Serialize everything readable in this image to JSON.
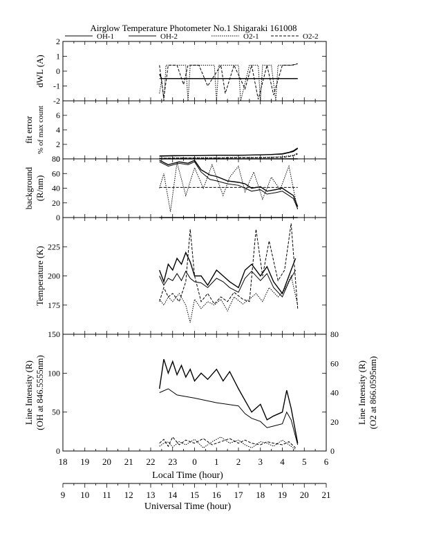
{
  "title": "Airglow Temperature Photometer No.1  Shigaraki  161008",
  "legend": [
    {
      "name": "OH-1",
      "dash": "solid"
    },
    {
      "name": "OH-2",
      "dash": "solid"
    },
    {
      "name": "O2-1",
      "dash": "dotted"
    },
    {
      "name": "O2-2",
      "dash": "dashed"
    }
  ],
  "x_axes": {
    "local": {
      "label": "Local Time (hour)",
      "ticks": [
        "18",
        "19",
        "20",
        "21",
        "22",
        "23",
        "0",
        "1",
        "2",
        "3",
        "4",
        "5",
        "6"
      ]
    },
    "universal": {
      "label": "Universal Time (hour)",
      "ticks": [
        "9",
        "10",
        "11",
        "12",
        "13",
        "14",
        "15",
        "16",
        "17",
        "18",
        "19",
        "20",
        "21"
      ]
    }
  },
  "chart_data": [
    {
      "type": "line",
      "ylabel": "dWL (A)",
      "ylim": [
        -2,
        2
      ],
      "yticks": [
        "2",
        "1",
        "0",
        "-1",
        "-2"
      ],
      "x_units": "universal time (hour)",
      "series": [
        {
          "name": "OH-1",
          "x": [
            13.4,
            13.5,
            19.7
          ],
          "y": [
            -0.2,
            -0.5,
            -0.5
          ]
        },
        {
          "name": "OH-2",
          "x": [
            13.4,
            19.7
          ],
          "y": [
            -0.5,
            -0.5
          ]
        },
        {
          "name": "O2-1",
          "x": [
            13.4,
            13.5,
            13.6,
            13.7,
            13.8,
            14.0,
            14.6,
            14.7,
            14.8,
            15.0,
            15.5,
            15.9,
            16.0,
            16.1,
            16.5,
            17.0,
            17.1,
            17.5,
            17.9,
            18.0,
            18.1,
            18.5,
            18.7,
            18.8,
            19.0,
            19.5,
            19.7
          ],
          "y": [
            -1.5,
            -0.6,
            -2.0,
            0.4,
            0.4,
            0.4,
            0.4,
            -2.0,
            0.4,
            0.4,
            0.4,
            0.4,
            -2.0,
            0.4,
            0.4,
            0.4,
            -2.0,
            0.4,
            0.4,
            -2.0,
            0.4,
            0.4,
            -2.0,
            0.4,
            0.4,
            0.4,
            0.5
          ]
        },
        {
          "name": "O2-2",
          "x": [
            13.4,
            13.6,
            13.8,
            14.2,
            14.5,
            14.7,
            15.2,
            15.6,
            16.2,
            16.4,
            16.8,
            17.3,
            17.6,
            17.9,
            18.3,
            18.6,
            19.0,
            19.4,
            19.7
          ],
          "y": [
            0.4,
            -1.8,
            0.4,
            0.4,
            -0.9,
            0.4,
            0.4,
            -1.0,
            0.4,
            -1.5,
            0.4,
            -1.2,
            0.4,
            -1.9,
            0.4,
            -1.6,
            0.4,
            0.4,
            0.5
          ]
        }
      ]
    },
    {
      "type": "line",
      "ylabel": "fit error",
      "ylabel2": "% of max count",
      "ylim": [
        0,
        8
      ],
      "yticks": [
        "6",
        "4",
        "2",
        "0"
      ],
      "x_units": "universal time (hour)",
      "series": [
        {
          "name": "OH-1",
          "x": [
            13.4,
            14.0,
            15.0,
            16.0,
            17.0,
            18.0,
            18.5,
            19.0,
            19.3,
            19.5,
            19.7
          ],
          "y": [
            0.4,
            0.45,
            0.45,
            0.5,
            0.5,
            0.55,
            0.6,
            0.7,
            0.9,
            1.1,
            1.5
          ]
        },
        {
          "name": "OH-2",
          "x": [
            13.4,
            14.0,
            15.0,
            16.0,
            17.0,
            18.0,
            18.5,
            19.0,
            19.3,
            19.5,
            19.7
          ],
          "y": [
            0.35,
            0.4,
            0.45,
            0.5,
            0.5,
            0.55,
            0.6,
            0.65,
            0.85,
            1.0,
            1.4
          ]
        },
        {
          "name": "O2-1",
          "x": [
            13.4,
            14.0,
            15.0,
            16.0,
            17.0,
            18.0,
            19.0,
            19.5,
            19.7
          ],
          "y": [
            0.1,
            0.1,
            0.15,
            0.15,
            0.2,
            0.2,
            0.3,
            0.5,
            0.8
          ]
        },
        {
          "name": "O2-2",
          "x": [
            13.4,
            14.0,
            15.0,
            16.0,
            17.0,
            18.0,
            19.0,
            19.5,
            19.7
          ],
          "y": [
            0.05,
            0.1,
            0.1,
            0.1,
            0.15,
            0.15,
            0.2,
            0.4,
            0.7
          ]
        }
      ]
    },
    {
      "type": "line",
      "ylabel": "background",
      "ylabel2": "(R/nm)",
      "ylim": [
        0,
        80
      ],
      "yticks": [
        "80",
        "60",
        "40",
        "20",
        "0"
      ],
      "x_units": "universal time (hour)",
      "series": [
        {
          "name": "OH-1",
          "x": [
            13.4,
            13.8,
            14.3,
            14.7,
            15.0,
            15.3,
            15.7,
            16.0,
            16.5,
            17.0,
            17.3,
            17.6,
            18.0,
            18.3,
            18.7,
            19.0,
            19.3,
            19.5,
            19.7
          ],
          "y": [
            78,
            72,
            76,
            74,
            78,
            65,
            58,
            56,
            50,
            48,
            46,
            40,
            42,
            36,
            38,
            40,
            34,
            30,
            15
          ]
        },
        {
          "name": "OH-2",
          "x": [
            13.4,
            13.8,
            14.3,
            14.7,
            15.0,
            15.3,
            15.7,
            16.0,
            16.5,
            17.0,
            17.3,
            17.6,
            18.0,
            18.3,
            18.7,
            19.0,
            19.3,
            19.5,
            19.7
          ],
          "y": [
            76,
            70,
            74,
            72,
            76,
            62,
            52,
            50,
            46,
            44,
            40,
            36,
            38,
            32,
            34,
            36,
            30,
            26,
            12
          ]
        },
        {
          "name": "O2-1",
          "x": [
            13.4,
            13.6,
            13.9,
            14.2,
            14.6,
            15.0,
            15.4,
            15.8,
            16.3,
            16.6,
            17.0,
            17.3,
            17.7,
            18.1,
            18.5,
            18.9,
            19.3,
            19.7
          ],
          "y": [
            40,
            60,
            8,
            75,
            30,
            68,
            40,
            72,
            30,
            55,
            70,
            35,
            62,
            25,
            55,
            38,
            70,
            10
          ]
        },
        {
          "name": "O2-2",
          "x": [
            13.4,
            19.7
          ],
          "y": [
            41,
            41
          ]
        }
      ]
    },
    {
      "type": "line",
      "ylabel": "Temperature (K)",
      "ylim": [
        150,
        250
      ],
      "yticks": [
        "225",
        "200",
        "175"
      ],
      "x_units": "universal time (hour)",
      "series": [
        {
          "name": "OH-1",
          "x": [
            13.4,
            13.6,
            13.8,
            14.0,
            14.2,
            14.4,
            14.6,
            14.8,
            15.0,
            15.3,
            15.6,
            16.0,
            16.3,
            16.6,
            17.0,
            17.3,
            17.6,
            18.0,
            18.3,
            18.6,
            19.0,
            19.3,
            19.6
          ],
          "y": [
            205,
            195,
            210,
            205,
            215,
            210,
            220,
            212,
            200,
            200,
            192,
            205,
            200,
            195,
            190,
            205,
            210,
            200,
            208,
            195,
            185,
            200,
            215
          ]
        },
        {
          "name": "OH-2",
          "x": [
            13.4,
            13.6,
            13.8,
            14.0,
            14.2,
            14.4,
            14.6,
            14.8,
            15.0,
            15.3,
            15.6,
            16.0,
            16.3,
            16.6,
            17.0,
            17.3,
            17.6,
            18.0,
            18.3,
            18.6,
            19.0,
            19.3,
            19.6
          ],
          "y": [
            200,
            192,
            198,
            196,
            202,
            196,
            204,
            198,
            195,
            194,
            190,
            198,
            195,
            190,
            186,
            198,
            204,
            196,
            202,
            190,
            182,
            195,
            205
          ]
        },
        {
          "name": "O2-1",
          "x": [
            13.4,
            13.6,
            13.8,
            14.0,
            14.3,
            14.6,
            14.8,
            15.0,
            15.3,
            15.6,
            15.9,
            16.2,
            16.5,
            16.8,
            17.2,
            17.5,
            17.8,
            18.1,
            18.4,
            18.8,
            19.1,
            19.4,
            19.7
          ],
          "y": [
            180,
            175,
            182,
            178,
            185,
            175,
            160,
            180,
            172,
            178,
            175,
            180,
            170,
            182,
            176,
            180,
            185,
            178,
            190,
            182,
            188,
            200,
            175
          ]
        },
        {
          "name": "O2-2",
          "x": [
            13.4,
            13.6,
            13.8,
            14.0,
            14.3,
            14.6,
            14.8,
            15.0,
            15.3,
            15.6,
            15.9,
            16.2,
            16.5,
            16.8,
            17.2,
            17.5,
            17.8,
            18.1,
            18.4,
            18.8,
            19.1,
            19.4,
            19.7
          ],
          "y": [
            178,
            190,
            182,
            185,
            178,
            195,
            240,
            200,
            178,
            185,
            176,
            182,
            178,
            186,
            180,
            178,
            240,
            200,
            230,
            196,
            205,
            245,
            172
          ]
        }
      ]
    },
    {
      "type": "line",
      "ylabel": "Line Intensity (R)",
      "ylabel2": "(OH at 846.5555nm)",
      "right_ylabel": "Line Intensity (R)",
      "right_ylabel2": "(O2 at 866.0595nm)",
      "ylim": [
        0,
        150
      ],
      "yticks": [
        "150",
        "100",
        "50",
        "0"
      ],
      "right_ylim": [
        0,
        80
      ],
      "right_yticks": [
        "80",
        "60",
        "40",
        "20",
        "0"
      ],
      "x_units": "universal time (hour)",
      "series": [
        {
          "name": "OH-1",
          "x": [
            13.4,
            13.6,
            13.8,
            14.0,
            14.2,
            14.4,
            14.6,
            14.8,
            15.0,
            15.3,
            15.6,
            16.0,
            16.3,
            16.6,
            17.0,
            17.3,
            17.6,
            18.0,
            18.3,
            18.6,
            19.0,
            19.2,
            19.4,
            19.7
          ],
          "y": [
            80,
            118,
            100,
            115,
            98,
            110,
            95,
            105,
            90,
            100,
            92,
            105,
            90,
            102,
            80,
            65,
            50,
            60,
            40,
            45,
            50,
            78,
            55,
            10
          ]
        },
        {
          "name": "OH-2",
          "x": [
            13.4,
            13.8,
            14.2,
            14.6,
            15.0,
            15.5,
            16.0,
            16.5,
            17.0,
            17.3,
            17.6,
            18.0,
            18.3,
            18.6,
            19.0,
            19.2,
            19.4,
            19.7
          ],
          "y": [
            75,
            80,
            72,
            70,
            68,
            65,
            62,
            60,
            58,
            48,
            42,
            38,
            30,
            32,
            35,
            50,
            40,
            8
          ]
        },
        {
          "name": "O2-1",
          "x": [
            13.4,
            13.6,
            13.8,
            14.0,
            14.3,
            14.6,
            15.0,
            15.4,
            15.8,
            16.2,
            16.6,
            17.0,
            17.3,
            17.6,
            18.0,
            18.3,
            18.6,
            19.0,
            19.3,
            19.6
          ],
          "y": [
            6,
            10,
            12,
            5,
            12,
            8,
            15,
            4,
            12,
            18,
            10,
            14,
            8,
            4,
            12,
            10,
            6,
            14,
            8,
            2
          ]
        },
        {
          "name": "O2-2",
          "x": [
            13.4,
            13.6,
            13.8,
            14.0,
            14.3,
            14.6,
            15.0,
            15.4,
            15.8,
            16.2,
            16.6,
            17.0,
            17.3,
            17.6,
            18.0,
            18.3,
            18.6,
            19.0,
            19.3,
            19.6
          ],
          "y": [
            10,
            15,
            6,
            18,
            8,
            14,
            10,
            16,
            8,
            12,
            16,
            10,
            14,
            10,
            8,
            12,
            10,
            8,
            12,
            4
          ]
        }
      ]
    }
  ]
}
